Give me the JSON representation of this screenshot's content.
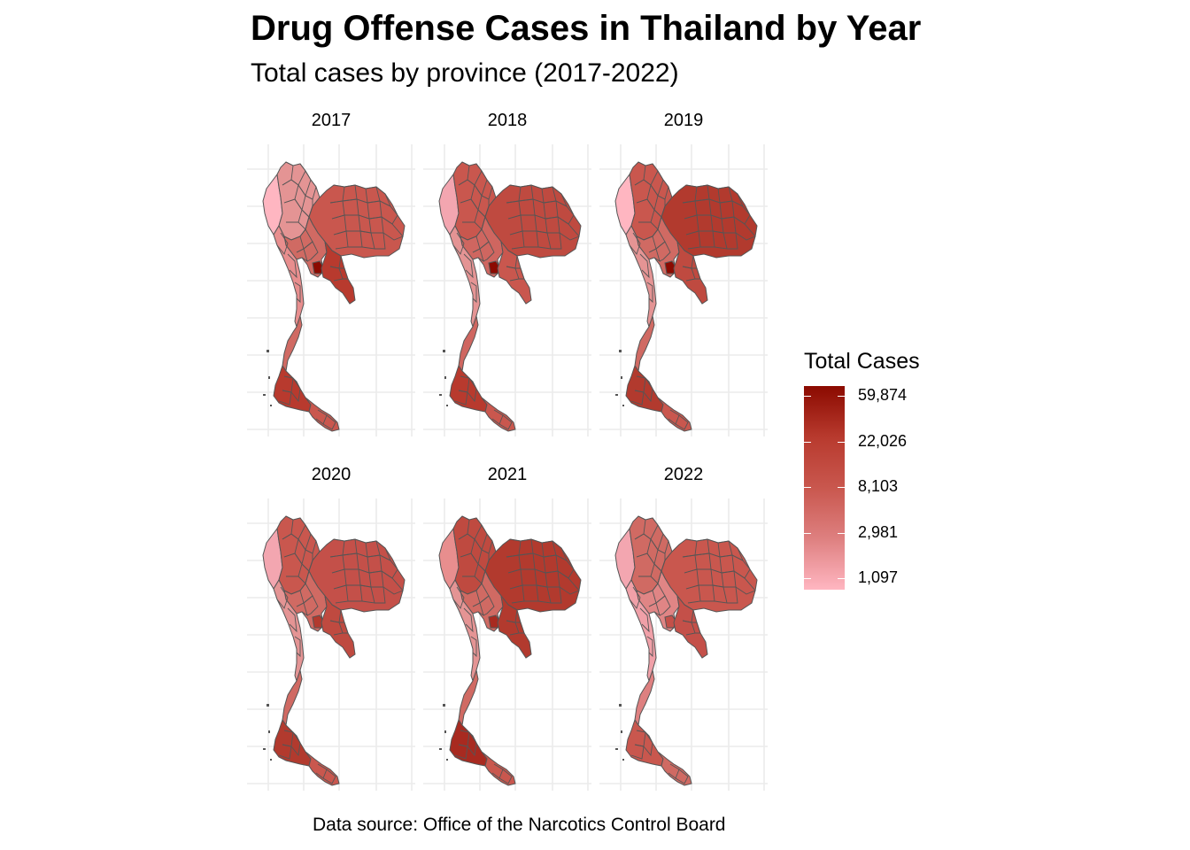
{
  "title": "Drug Offense Cases in Thailand by Year",
  "subtitle": "Total cases by province (2017-2022)",
  "caption": "Data source: Office of the Narcotics Control Board",
  "legend": {
    "title": "Total Cases",
    "labels": [
      "59,874",
      "22,026",
      "8,103",
      "2,981",
      "1,097"
    ],
    "values": [
      59874,
      22026,
      8103,
      2981,
      1097
    ],
    "scale": "log",
    "color_low": "#FFB6C1",
    "color_high": "#8B0A00"
  },
  "chart_data": {
    "type": "choropleth-map",
    "region": "Thailand provinces",
    "facets": [
      "2017",
      "2018",
      "2019",
      "2020",
      "2021",
      "2022"
    ],
    "grid": true,
    "legend_placement": "right",
    "color_scale": "log",
    "range": [
      1097,
      59874
    ]
  },
  "panels": [
    {
      "year": "2017",
      "shades": {
        "north": "#E49494",
        "northwest": "#FFB6C1",
        "northeast": "#C9574E",
        "east": "#B83A2E",
        "central": "#D06A63",
        "west": "#E88E8E",
        "bangkok": "#8B0A00",
        "south_upper": "#D06A63",
        "south": "#B83A2E",
        "deep_south": "#C9574E"
      }
    },
    {
      "year": "2018",
      "shades": {
        "north": "#C9574E",
        "northwest": "#F3A6B0",
        "northeast": "#BF4A40",
        "east": "#C9574E",
        "central": "#CF6660",
        "west": "#E49494",
        "bangkok": "#8B0A00",
        "south_upper": "#CF6660",
        "south": "#B83A2E",
        "deep_south": "#C9574E"
      }
    },
    {
      "year": "2019",
      "shades": {
        "north": "#C9574E",
        "northwest": "#FFB6C1",
        "northeast": "#B23A2E",
        "east": "#BF4A40",
        "central": "#D06A63",
        "west": "#E49494",
        "bangkok": "#8B0A00",
        "south_upper": "#D06A63",
        "south": "#B23A2E",
        "deep_south": "#C9574E"
      }
    },
    {
      "year": "2020",
      "shades": {
        "north": "#C9574E",
        "northwest": "#F3A6B0",
        "northeast": "#C45049",
        "east": "#BF4A40",
        "central": "#D06A63",
        "west": "#E49494",
        "bangkok": "#B23A2E",
        "south_upper": "#D06A63",
        "south": "#B23A2E",
        "deep_south": "#C9574E"
      }
    },
    {
      "year": "2021",
      "shades": {
        "north": "#BF4A40",
        "northwest": "#E88E8E",
        "northeast": "#B23A2E",
        "east": "#B23A2E",
        "central": "#D06A63",
        "west": "#E49494",
        "bangkok": "#A82A20",
        "south_upper": "#D06A63",
        "south": "#A82A20",
        "deep_south": "#C9574E"
      }
    },
    {
      "year": "2022",
      "shades": {
        "north": "#D06A63",
        "northwest": "#F3A6B0",
        "northeast": "#C9574E",
        "east": "#C45049",
        "central": "#E08585",
        "west": "#F0A0A8",
        "bangkok": "#C45049",
        "south_upper": "#DE8080",
        "south": "#C9574E",
        "deep_south": "#D06A63"
      }
    }
  ]
}
